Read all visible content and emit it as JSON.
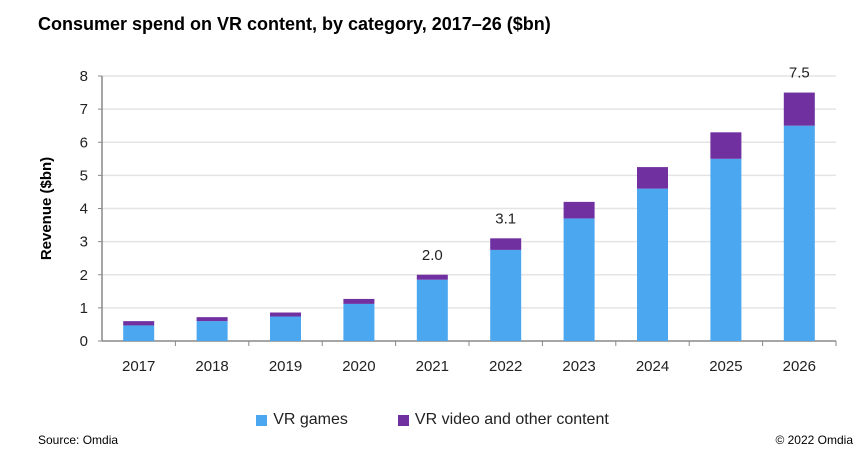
{
  "title": "Consumer spend on VR content, by category, 2017–26 ($bn)",
  "source": "Source: Omdia",
  "copyright": "© 2022 Omdia",
  "colors": {
    "games": "#4BA8F0",
    "video": "#7030A0",
    "grid": "#e4e4e4",
    "axis": "#888888"
  },
  "chart_data": {
    "type": "bar",
    "stacked": true,
    "title": "Consumer spend on VR content, by category, 2017–26 ($bn)",
    "xlabel": "",
    "ylabel": "Revenue ($bn)",
    "ylim": [
      0,
      8
    ],
    "yticks": [
      "0",
      "1",
      "2",
      "3",
      "4",
      "5",
      "6",
      "7",
      "8"
    ],
    "grid": true,
    "legend_position": "bottom",
    "categories": [
      "2017",
      "2018",
      "2019",
      "2020",
      "2021",
      "2022",
      "2023",
      "2024",
      "2025",
      "2026"
    ],
    "series": [
      {
        "name": "VR games",
        "values": [
          0.47,
          0.6,
          0.74,
          1.12,
          1.85,
          2.75,
          3.7,
          4.6,
          5.5,
          6.5
        ]
      },
      {
        "name": "VR video and other content",
        "values": [
          0.13,
          0.12,
          0.12,
          0.15,
          0.15,
          0.35,
          0.5,
          0.65,
          0.8,
          1.0
        ]
      }
    ],
    "data_labels": [
      {
        "category": "2021",
        "text": "2.0"
      },
      {
        "category": "2022",
        "text": "3.1"
      },
      {
        "category": "2026",
        "text": "7.5"
      }
    ]
  }
}
